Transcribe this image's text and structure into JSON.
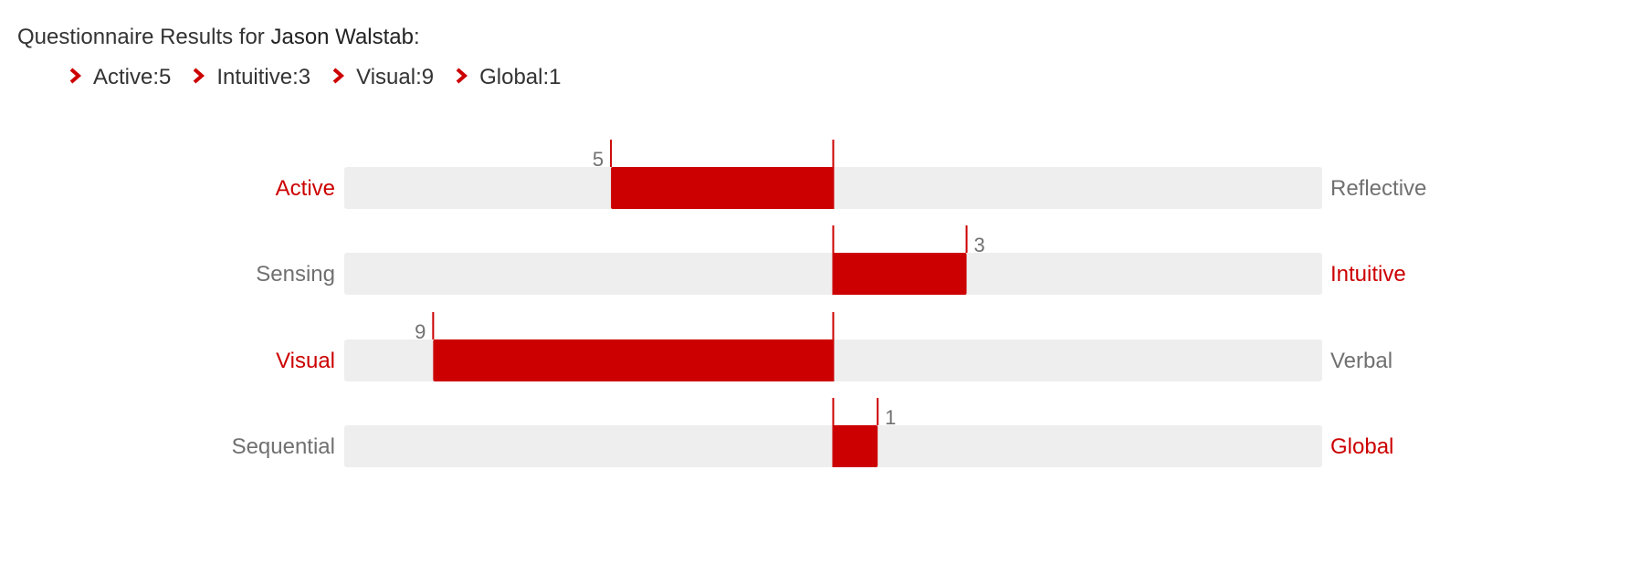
{
  "header": {
    "prefix": "Questionnaire Results for ",
    "name": "Jason Walstab",
    "suffix": ":"
  },
  "summary": [
    {
      "label": "Active",
      "sep": ": ",
      "value": "5"
    },
    {
      "label": "Intuitive",
      "sep": ": ",
      "value": "3"
    },
    {
      "label": "Visual",
      "sep": ": ",
      "value": "9"
    },
    {
      "label": "Global",
      "sep": ": ",
      "value": "1"
    }
  ],
  "colors": {
    "accent": "#cc0000",
    "track": "#eeeeee",
    "muted_text": "#707070",
    "text": "#333333"
  },
  "icons": {
    "summary_bullet": "chevron-right-icon"
  },
  "chart_data": {
    "type": "bar",
    "orientation": "horizontal",
    "diverging": true,
    "xlim": [
      -11,
      11
    ],
    "scales": [
      {
        "left": "Active",
        "right": "Reflective",
        "direction": "left",
        "value": 5
      },
      {
        "left": "Sensing",
        "right": "Intuitive",
        "direction": "right",
        "value": 3
      },
      {
        "left": "Visual",
        "right": "Verbal",
        "direction": "left",
        "value": 9
      },
      {
        "left": "Sequential",
        "right": "Global",
        "direction": "right",
        "value": 1
      }
    ]
  }
}
